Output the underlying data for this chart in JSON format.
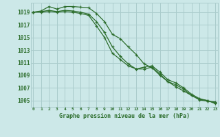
{
  "title": "Graphe pression niveau de la mer (hPa)",
  "bg_color": "#cce8e8",
  "grid_color": "#aacccc",
  "line_color": "#2d6e2d",
  "x_labels": [
    "0",
    "1",
    "2",
    "3",
    "4",
    "5",
    "6",
    "7",
    "8",
    "9",
    "10",
    "11",
    "12",
    "13",
    "14",
    "15",
    "16",
    "17",
    "18",
    "19",
    "20",
    "21",
    "22",
    "23"
  ],
  "ylim": [
    1004.0,
    1020.5
  ],
  "yticks": [
    1005,
    1007,
    1009,
    1011,
    1013,
    1015,
    1017,
    1019
  ],
  "line1": [
    1019.0,
    1019.2,
    1019.9,
    1019.5,
    1019.9,
    1019.9,
    1019.8,
    1019.7,
    1018.8,
    1017.5,
    1015.5,
    1014.8,
    1013.5,
    1012.3,
    1010.8,
    1010.2,
    1009.0,
    1008.0,
    1007.2,
    1006.5,
    1005.8,
    1005.1,
    1004.9,
    1004.8
  ],
  "line2": [
    1019.0,
    1019.1,
    1019.3,
    1019.1,
    1019.3,
    1019.2,
    1019.0,
    1018.7,
    1017.5,
    1015.8,
    1013.5,
    1012.0,
    1010.8,
    1010.0,
    1010.3,
    1010.5,
    1009.5,
    1008.3,
    1007.8,
    1007.0,
    1006.0,
    1005.3,
    1005.0,
    1004.6
  ],
  "line3": [
    1019.0,
    1019.0,
    1019.1,
    1019.0,
    1019.1,
    1019.0,
    1018.8,
    1018.5,
    1016.8,
    1015.0,
    1012.5,
    1011.5,
    1010.5,
    1010.0,
    1010.0,
    1010.3,
    1009.2,
    1008.0,
    1007.5,
    1006.8,
    1005.8,
    1005.2,
    1005.0,
    1004.5
  ]
}
